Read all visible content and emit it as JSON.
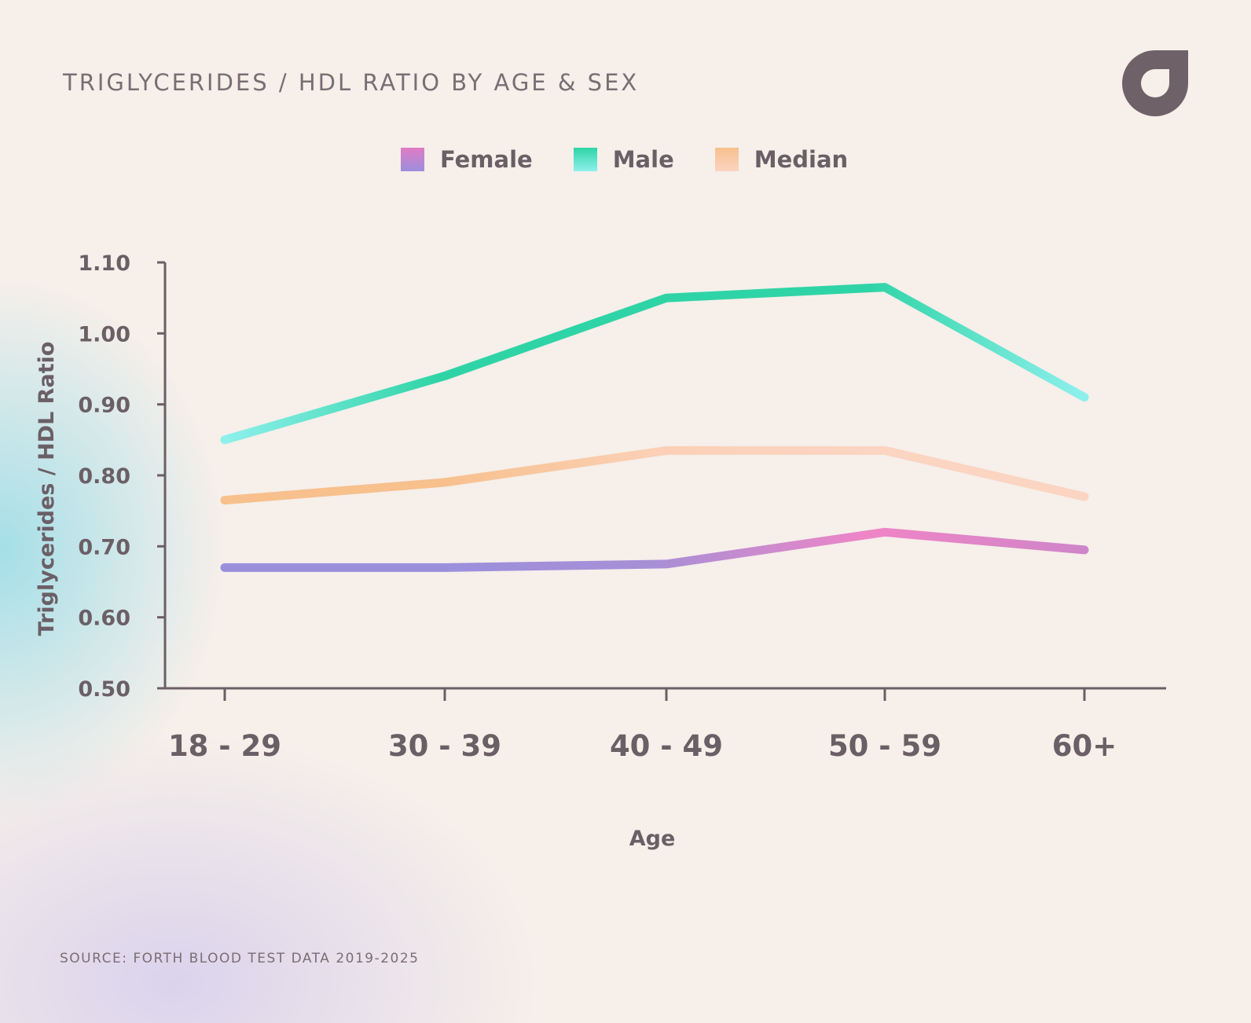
{
  "header": {
    "title": "TRIGLYCERIDES / HDL RATIO BY AGE & SEX",
    "logo_icon": "brand-logo-icon"
  },
  "legend": [
    {
      "label": "Female",
      "colors": [
        "#e07bc4",
        "#9b8fdc"
      ]
    },
    {
      "label": "Male",
      "colors": [
        "#2fd4a6",
        "#8ef0ec"
      ]
    },
    {
      "label": "Median",
      "colors": [
        "#f7c08c",
        "#fbd4c2"
      ]
    }
  ],
  "footer": {
    "source": "SOURCE: FORTH BLOOD TEST DATA 2019-2025"
  },
  "chart_data": {
    "type": "line",
    "xlabel": "Age",
    "ylabel": "Triglycerides / HDL Ratio",
    "categories": [
      "18 - 29",
      "30 - 39",
      "40 - 49",
      "50 - 59",
      "60+"
    ],
    "ylim": [
      0.5,
      1.1
    ],
    "yticks": [
      "0.50",
      "0.60",
      "0.70",
      "0.80",
      "0.90",
      "1.00",
      "1.10"
    ],
    "grid": false,
    "legend_position": "top-center",
    "series": [
      {
        "name": "Male",
        "values": [
          0.85,
          0.94,
          1.05,
          1.065,
          0.91
        ],
        "colors": [
          "#8ef0ec",
          "#2fd4a6",
          "#2fd4a6",
          "#2fd4a6",
          "#8ef0ec"
        ]
      },
      {
        "name": "Median",
        "values": [
          0.765,
          0.79,
          0.835,
          0.835,
          0.77
        ],
        "colors": [
          "#f7c08c",
          "#f7c08c",
          "#fbd0b6",
          "#fbd4c2",
          "#fbd4c2"
        ]
      },
      {
        "name": "Female",
        "values": [
          0.67,
          0.67,
          0.675,
          0.72,
          0.695
        ],
        "colors": [
          "#9b8fdc",
          "#9b8fdc",
          "#a88fd6",
          "#ef85c6",
          "#cf85c9"
        ]
      }
    ]
  }
}
